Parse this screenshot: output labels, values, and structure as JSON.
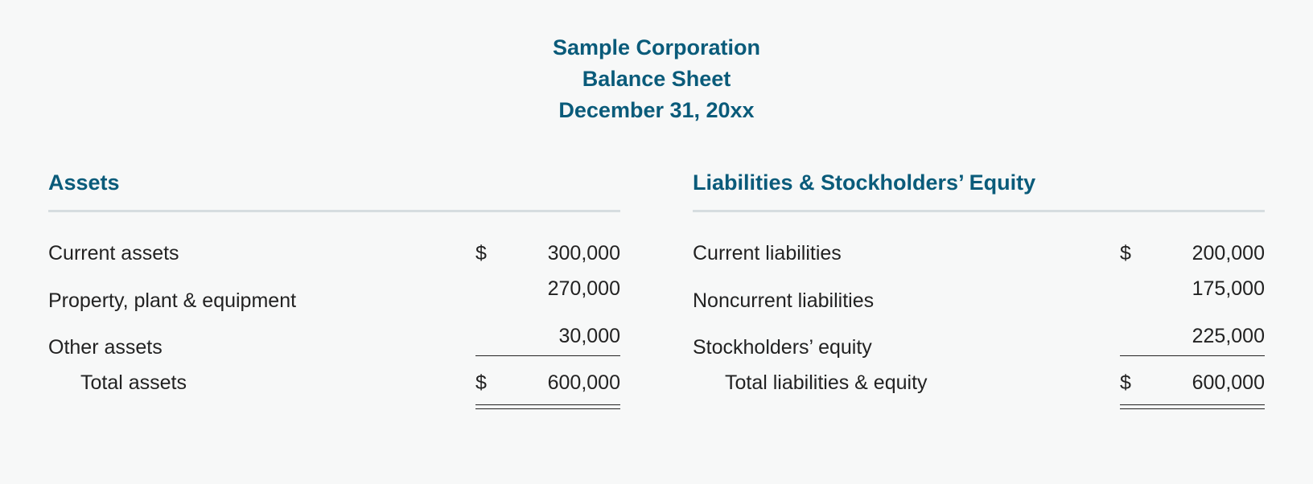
{
  "header": {
    "company": "Sample Corporation",
    "title": "Balance Sheet",
    "date": "December 31, 20xx"
  },
  "assets": {
    "heading": "Assets",
    "rows": [
      {
        "label": "Current assets",
        "currency": "$",
        "value": "300,000"
      },
      {
        "label": "Property, plant & equipment",
        "currency": "",
        "value": "270,000"
      },
      {
        "label": "Other assets",
        "currency": "",
        "value": "30,000"
      }
    ],
    "total": {
      "label": "Total assets",
      "currency": "$",
      "value": "600,000"
    }
  },
  "liabilities": {
    "heading": "Liabilities & Stockholders’ Equity",
    "rows": [
      {
        "label": "Current liabilities",
        "currency": "$",
        "value": "200,000"
      },
      {
        "label": "Noncurrent liabilities",
        "currency": "",
        "value": "175,000"
      },
      {
        "label": "Stockholders’ equity",
        "currency": "",
        "value": "225,000"
      }
    ],
    "total": {
      "label": "Total liabilities & equity",
      "currency": "$",
      "value": "600,000"
    }
  },
  "style": {
    "accent_color": "#0a5b7a",
    "background_color": "#f7f8f8",
    "rule_color": "#d6dde0",
    "text_color": "#222222",
    "header_fontsize": 27,
    "body_fontsize": 25,
    "amount_col_width": 180
  }
}
